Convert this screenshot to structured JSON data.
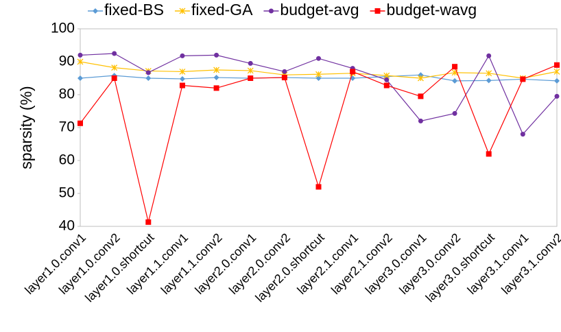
{
  "chart_data": {
    "type": "line",
    "ylabel": "sparsity (%)",
    "categories": [
      "layer1.0.conv1",
      "layer1.0.conv2",
      "layer1.0.shortcut",
      "layer1.1.conv1",
      "layer1.1.conv2",
      "layer2.0.conv1",
      "layer2.0.conv2",
      "layer2.0.shortcut",
      "layer2.1.conv1",
      "layer2.1.conv2",
      "layer3.0.conv1",
      "layer3.0.conv2",
      "layer3.0.shortcut",
      "layer3.1.conv1",
      "layer3.1.conv2"
    ],
    "series": [
      {
        "name": "fixed-BS",
        "color": "#5b9bd5",
        "marker": "diamond",
        "values": [
          85,
          85.8,
          85,
          84.8,
          85.2,
          85,
          85.2,
          85,
          85,
          85.5,
          86,
          84.2,
          84.3,
          84.7,
          84.2
        ]
      },
      {
        "name": "fixed-GA",
        "color": "#ffc000",
        "marker": "x",
        "values": [
          90,
          88.2,
          87.2,
          87,
          87.5,
          87.3,
          86,
          86.2,
          86.5,
          85.8,
          85,
          86.7,
          86.5,
          85,
          87
        ]
      },
      {
        "name": "budget-avg",
        "color": "#7030a0",
        "marker": "circle",
        "values": [
          92,
          92.5,
          86.7,
          91.8,
          92,
          89.5,
          87,
          91,
          88,
          84.5,
          72,
          74.3,
          91.8,
          68,
          79.5
        ]
      },
      {
        "name": "budget-wavg",
        "color": "#ff0000",
        "marker": "square",
        "values": [
          71.3,
          85,
          41.3,
          82.8,
          82,
          85,
          85.2,
          52,
          87,
          82.8,
          79.5,
          88.5,
          62,
          84.7,
          89
        ]
      }
    ],
    "ylim": [
      40,
      100
    ],
    "yticks": [
      40,
      50,
      60,
      70,
      80,
      90,
      100
    ],
    "grid": false,
    "legend": "top"
  }
}
